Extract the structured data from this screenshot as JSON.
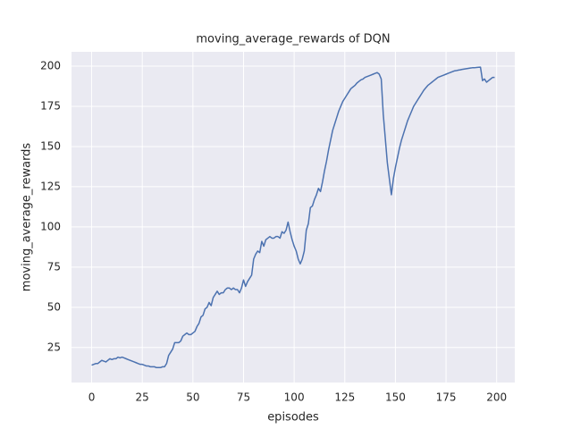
{
  "chart_data": {
    "type": "line",
    "title": "moving_average_rewards of DQN",
    "xlabel": "episodes",
    "ylabel": "moving_average_rewards",
    "x": [
      0,
      1,
      2,
      3,
      4,
      5,
      6,
      7,
      8,
      9,
      10,
      11,
      12,
      13,
      14,
      15,
      16,
      17,
      18,
      19,
      20,
      21,
      22,
      23,
      24,
      25,
      26,
      27,
      28,
      29,
      30,
      31,
      32,
      33,
      34,
      35,
      36,
      37,
      38,
      39,
      40,
      41,
      42,
      43,
      44,
      45,
      46,
      47,
      48,
      49,
      50,
      51,
      52,
      53,
      54,
      55,
      56,
      57,
      58,
      59,
      60,
      61,
      62,
      63,
      64,
      65,
      66,
      67,
      68,
      69,
      70,
      71,
      72,
      73,
      74,
      75,
      76,
      77,
      78,
      79,
      80,
      81,
      82,
      83,
      84,
      85,
      86,
      87,
      88,
      89,
      90,
      91,
      92,
      93,
      94,
      95,
      96,
      97,
      98,
      99,
      100,
      101,
      102,
      103,
      104,
      105,
      106,
      107,
      108,
      109,
      110,
      111,
      112,
      113,
      114,
      115,
      116,
      117,
      118,
      119,
      120,
      121,
      122,
      123,
      124,
      125,
      126,
      127,
      128,
      129,
      130,
      131,
      132,
      133,
      134,
      135,
      136,
      137,
      138,
      139,
      140,
      141,
      142,
      143,
      144,
      145,
      146,
      147,
      148,
      149,
      150,
      151,
      152,
      153,
      154,
      155,
      156,
      157,
      158,
      159,
      160,
      161,
      162,
      163,
      164,
      165,
      166,
      167,
      168,
      169,
      170,
      171,
      172,
      173,
      174,
      175,
      176,
      177,
      178,
      179,
      180,
      181,
      182,
      183,
      184,
      185,
      186,
      187,
      188,
      189,
      190,
      191,
      192,
      193,
      194,
      195,
      196,
      197,
      198,
      199
    ],
    "series": [
      {
        "name": "moving_average_rewards",
        "color": "#4c72b0",
        "values": [
          14,
          14.5,
          15,
          15,
          16,
          17,
          16.5,
          16,
          17,
          18,
          17.5,
          18,
          18,
          19,
          18.5,
          19,
          18.5,
          18,
          17.5,
          17,
          16.5,
          16,
          15.5,
          15,
          14.5,
          14.5,
          14,
          13.5,
          13.5,
          13,
          13,
          13,
          12.5,
          12.5,
          12.5,
          13,
          13,
          15,
          20,
          22,
          24,
          28,
          28,
          28,
          29,
          32,
          33,
          34,
          33,
          33,
          34,
          35,
          38,
          40,
          44,
          45,
          49,
          50,
          53,
          51,
          56,
          58,
          60,
          58,
          59,
          59,
          61,
          62,
          62,
          61,
          62,
          61,
          61,
          59,
          62,
          67,
          63,
          66,
          68,
          70,
          80,
          83,
          85,
          84,
          91,
          88,
          92,
          93,
          94,
          93,
          93,
          94,
          94,
          93,
          97,
          96,
          98,
          103,
          97,
          92,
          88,
          85,
          80,
          77,
          80,
          85,
          98,
          102,
          112,
          113,
          117,
          120,
          124,
          122,
          128,
          135,
          141,
          148,
          154,
          160,
          164,
          168,
          172,
          175,
          178,
          180,
          182,
          184,
          186,
          187,
          188,
          189.5,
          190.5,
          191.5,
          192,
          193,
          193.5,
          194,
          194.5,
          195,
          195.5,
          196,
          195,
          192,
          170,
          155,
          140,
          130,
          120,
          130,
          137,
          143,
          149,
          154,
          158,
          162,
          166,
          169,
          172,
          175,
          177,
          179,
          181,
          183,
          185,
          186.5,
          188,
          189,
          190,
          191,
          192,
          193,
          193.5,
          194,
          194.5,
          195,
          195.5,
          196,
          196.5,
          197,
          197.2,
          197.5,
          197.7,
          198,
          198.2,
          198.4,
          198.6,
          198.8,
          199,
          199,
          199.2,
          199.3,
          199.4,
          191,
          192,
          190,
          191,
          192,
          193,
          193
        ]
      }
    ],
    "xlim": [
      -9.95,
      208.95
    ],
    "ylim": [
      3.2,
      208.9
    ],
    "xticks": [
      0,
      25,
      50,
      75,
      100,
      125,
      150,
      175,
      200
    ],
    "yticks": [
      25,
      50,
      75,
      100,
      125,
      150,
      175,
      200
    ],
    "grid": true
  }
}
